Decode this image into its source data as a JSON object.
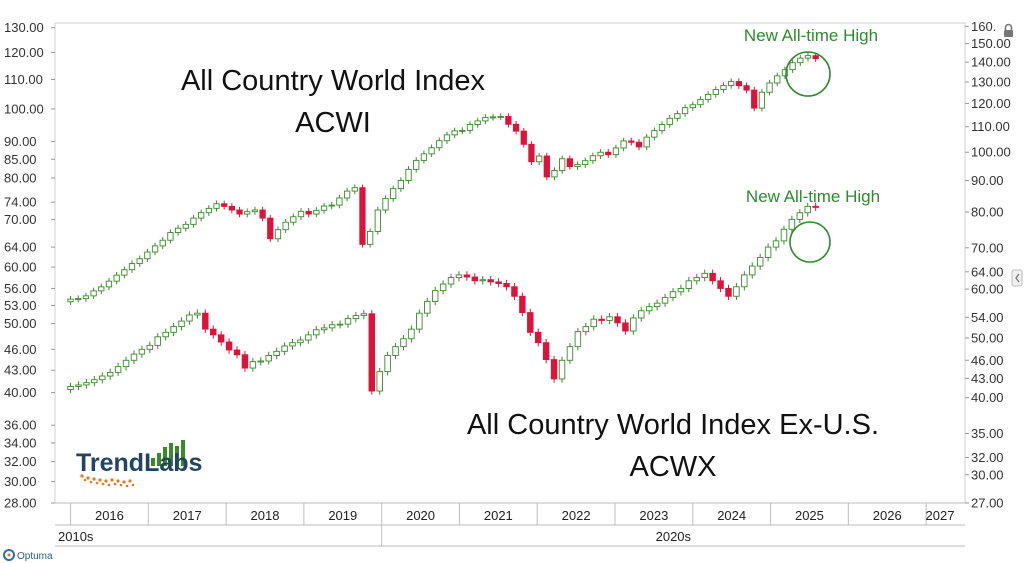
{
  "chart_data": {
    "type": "candlestick",
    "x_range": [
      2015.8,
      2027.5
    ],
    "years": [
      "2016",
      "2017",
      "2018",
      "2019",
      "2020",
      "2021",
      "2022",
      "2023",
      "2024",
      "2025",
      "2026",
      "2027"
    ],
    "decades": [
      "2010s",
      "2020s"
    ],
    "left_axis": {
      "ticks": [
        "130.00",
        "120.00",
        "110.00",
        "100.00",
        "90.00",
        "85.00",
        "80.00",
        "74.00",
        "70.00",
        "64.00",
        "60.00",
        "56.00",
        "53.00",
        "50.00",
        "46.00",
        "43.00",
        "40.00",
        "36.00",
        "34.00",
        "32.00",
        "30.00",
        "28.00"
      ],
      "range": [
        28,
        132
      ],
      "scale": "log"
    },
    "right_axis": {
      "ticks": [
        "160.",
        "150.00",
        "140.00",
        "130.00",
        "120.00",
        "110.00",
        "100.00",
        "90.00",
        "80.00",
        "70.00",
        "64.00",
        "60.00",
        "54.00",
        "50.00",
        "46.00",
        "43.00",
        "40.00",
        "35.00",
        "32.00",
        "30.00",
        "27.00"
      ],
      "range": [
        27,
        162
      ],
      "scale": "log"
    },
    "series": [
      {
        "name": "ACWI",
        "title_line1": "All Country World Index",
        "title_line2": "ACWI",
        "annotation": "New All-time High",
        "closes": [
          57.8,
          57.9,
          58.5,
          59.6,
          60.5,
          61.8,
          63.2,
          64.5,
          66.0,
          67.2,
          68.9,
          70.5,
          72.0,
          74.1,
          75.3,
          76.4,
          78.2,
          79.8,
          81.1,
          82.5,
          81.7,
          80.6,
          79.4,
          80.1,
          80.6,
          78.2,
          72.4,
          74.9,
          77.0,
          78.6,
          80.2,
          79.4,
          80.5,
          81.8,
          82.1,
          84.3,
          86.5,
          87.6,
          70.9,
          74.4,
          80.6,
          84.1,
          87.3,
          90.0,
          93.8,
          97.0,
          99.4,
          101.7,
          104.4,
          106.7,
          108.3,
          108.5,
          110.9,
          112.4,
          113.9,
          114.1,
          114.3,
          111.0,
          108.2,
          103.0,
          96.5,
          98.6,
          91.2,
          93.4,
          97.6,
          94.8,
          95.5,
          96.9,
          98.7,
          100.0,
          99.1,
          101.6,
          104.3,
          103.8,
          102.0,
          105.8,
          108.4,
          110.9,
          113.5,
          115.5,
          118.1,
          119.4,
          121.8,
          124.1,
          126.4,
          128.3,
          130.2,
          128.2,
          126.1,
          117.9,
          125.1,
          129.5,
          133.0,
          136.1,
          139.7,
          142.1,
          143.4,
          141.8
        ],
        "new_high_from": 94
      },
      {
        "name": "ACWX",
        "title_line1": "All Country World Index Ex-U.S.",
        "title_line2": "ACWX",
        "annotation": "New All-time High",
        "closes": [
          40.8,
          41.0,
          41.3,
          41.7,
          42.2,
          42.7,
          43.5,
          44.4,
          45.3,
          46.0,
          46.6,
          47.9,
          48.6,
          49.5,
          50.4,
          51.4,
          51.7,
          49.1,
          48.2,
          47.1,
          45.9,
          45.2,
          43.3,
          44.2,
          44.3,
          45.1,
          45.7,
          46.5,
          47.0,
          47.4,
          48.2,
          49.0,
          49.3,
          49.8,
          49.9,
          50.8,
          51.3,
          51.6,
          40.2,
          42.8,
          45.1,
          46.4,
          47.6,
          49.1,
          51.7,
          53.7,
          55.6,
          56.8,
          58.0,
          58.5,
          58.1,
          57.4,
          57.6,
          57.2,
          56.9,
          56.3,
          54.6,
          51.8,
          48.6,
          47.0,
          44.5,
          41.8,
          44.4,
          46.4,
          48.7,
          49.5,
          50.7,
          50.5,
          51.1,
          50.1,
          48.8,
          50.9,
          52.1,
          52.8,
          53.4,
          54.4,
          55.4,
          56.0,
          57.4,
          58.0,
          58.8,
          57.4,
          56.0,
          54.6,
          56.3,
          58.5,
          60.2,
          61.9,
          64.0,
          65.3,
          67.8,
          70.0,
          71.5,
          73.0,
          72.8
        ],
        "new_high_from": 90
      }
    ]
  },
  "branding": {
    "logo_text": "TrendLabs",
    "platform": "Optuma"
  },
  "colors": {
    "up": "#3a8a2a",
    "down": "#dc143c",
    "annotation": "#2e8b2e",
    "grid": "#cfcfcf"
  },
  "icons": {
    "lock": "lock-icon",
    "right-tab": "panel-tab-icon",
    "optuma": "optuma-logo-icon"
  }
}
